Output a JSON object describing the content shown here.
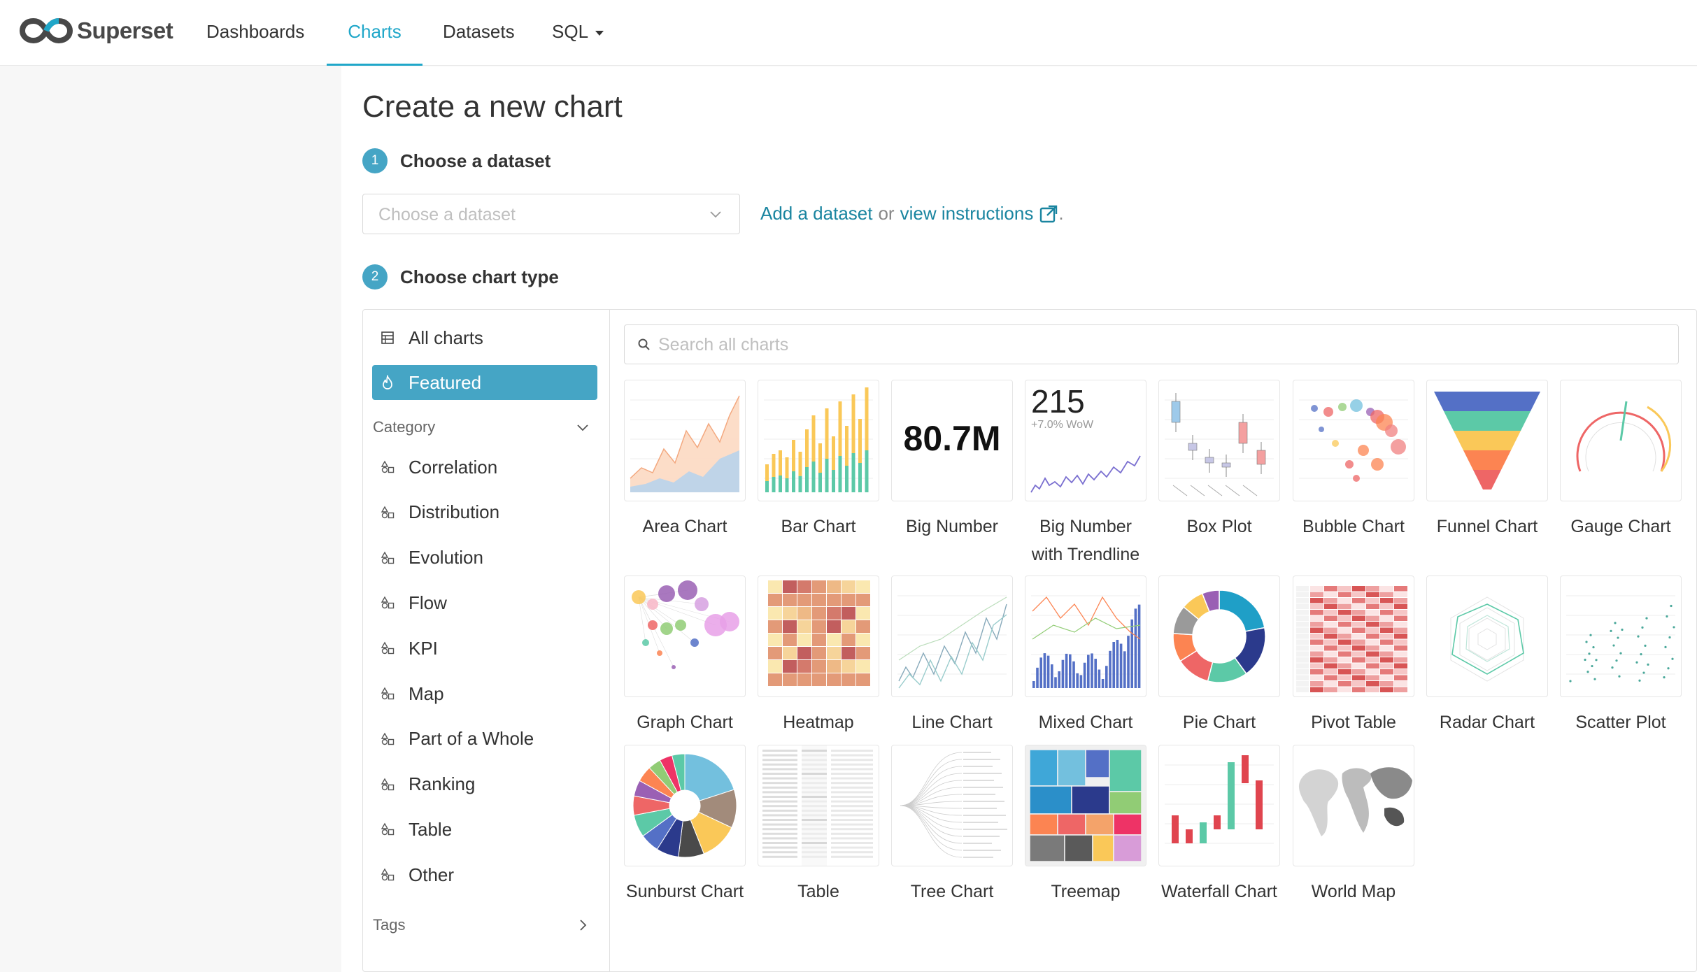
{
  "brand": {
    "name": "Superset"
  },
  "nav": {
    "dashboards": "Dashboards",
    "charts": "Charts",
    "datasets": "Datasets",
    "sql": "SQL"
  },
  "page": {
    "title": "Create a new chart",
    "step1": {
      "number": "1",
      "label": "Choose a dataset"
    },
    "dataset_placeholder": "Choose a dataset",
    "add_dataset": "Add a dataset",
    "or": "or",
    "view_instructions": "view instructions",
    "step2": {
      "number": "2",
      "label": "Choose chart type"
    }
  },
  "sidebar": {
    "all_charts": "All charts",
    "featured": "Featured",
    "category_heading": "Category",
    "categories": [
      "Correlation",
      "Distribution",
      "Evolution",
      "Flow",
      "KPI",
      "Map",
      "Part of a Whole",
      "Ranking",
      "Table",
      "Other"
    ],
    "tags_heading": "Tags"
  },
  "search": {
    "placeholder": "Search all charts"
  },
  "big_number": {
    "value": "80.7M"
  },
  "trendline": {
    "value": "215",
    "change": "+7.0% WoW"
  },
  "charts": [
    {
      "id": "area",
      "label": "Area Chart"
    },
    {
      "id": "bar",
      "label": "Bar Chart"
    },
    {
      "id": "bignumber",
      "label": "Big Number"
    },
    {
      "id": "trendline",
      "label": "Big Number with Trendline"
    },
    {
      "id": "box",
      "label": "Box Plot"
    },
    {
      "id": "bubble",
      "label": "Bubble Chart"
    },
    {
      "id": "funnel",
      "label": "Funnel Chart"
    },
    {
      "id": "gauge",
      "label": "Gauge Chart"
    },
    {
      "id": "graph",
      "label": "Graph Chart"
    },
    {
      "id": "heatmap",
      "label": "Heatmap"
    },
    {
      "id": "line",
      "label": "Line Chart"
    },
    {
      "id": "mixed",
      "label": "Mixed Chart"
    },
    {
      "id": "pie",
      "label": "Pie Chart"
    },
    {
      "id": "pivot",
      "label": "Pivot Table"
    },
    {
      "id": "radar",
      "label": "Radar Chart"
    },
    {
      "id": "scatter",
      "label": "Scatter Plot"
    },
    {
      "id": "sunburst",
      "label": "Sunburst Chart"
    },
    {
      "id": "table",
      "label": "Table"
    },
    {
      "id": "tree",
      "label": "Tree Chart"
    },
    {
      "id": "treemap",
      "label": "Treemap"
    },
    {
      "id": "waterfall",
      "label": "Waterfall Chart"
    },
    {
      "id": "worldmap",
      "label": "World Map"
    }
  ],
  "colors": {
    "accent": "#20a7c9",
    "selected": "#45a5c5",
    "link": "#1a85a0"
  }
}
